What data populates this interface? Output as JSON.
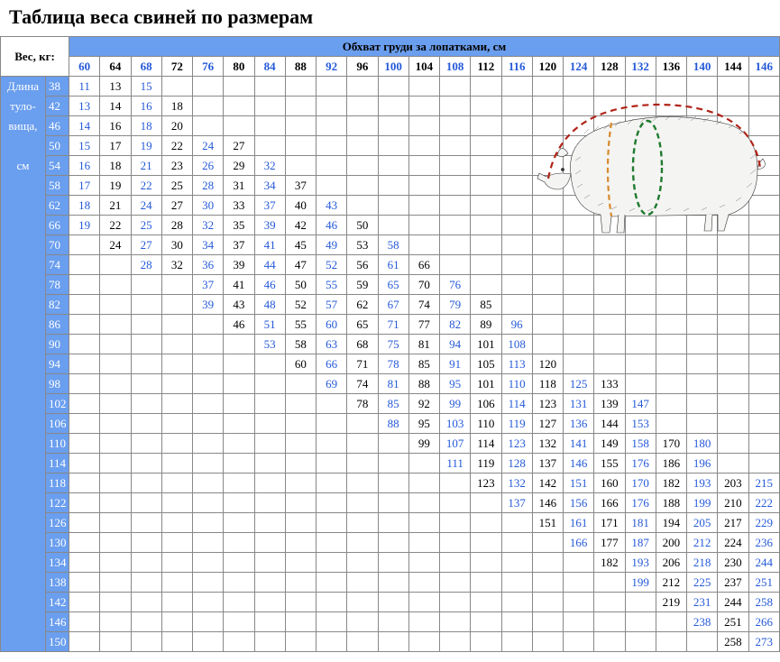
{
  "title": "Таблица веса свиней по размерам",
  "colors": {
    "header_bg": "#6a9eee",
    "blue_text": "#2459d8",
    "black_text": "#000000",
    "border": "#888888",
    "side_text": "#ffffff"
  },
  "fonts": {
    "title_size": 22,
    "cell_size": 13
  },
  "corner_label": "Вес, кг:",
  "top_header": "Обхват груди за лопатками, см",
  "side_labels": [
    "Длина",
    "туло-",
    "вища,",
    "см"
  ],
  "columns": [
    "60",
    "64",
    "68",
    "72",
    "76",
    "80",
    "84",
    "88",
    "92",
    "96",
    "100",
    "104",
    "108",
    "112",
    "116",
    "120",
    "124",
    "128",
    "132",
    "136",
    "140",
    "144",
    "146"
  ],
  "row_labels": [
    "38",
    "42",
    "46",
    "50",
    "54",
    "58",
    "62",
    "66",
    "70",
    "74",
    "78",
    "82",
    "86",
    "90",
    "94",
    "98",
    "102",
    "106",
    "110",
    "114",
    "118",
    "122",
    "126",
    "130",
    "134",
    "138",
    "142",
    "146",
    "150"
  ],
  "grid": [
    [
      "11",
      "13",
      "15",
      "",
      "",
      "",
      "",
      "",
      "",
      "",
      "",
      "",
      "",
      "",
      "",
      "",
      "",
      "",
      "",
      "",
      "",
      "",
      ""
    ],
    [
      "13",
      "14",
      "16",
      "18",
      "",
      "",
      "",
      "",
      "",
      "",
      "",
      "",
      "",
      "",
      "",
      "",
      "",
      "",
      "",
      "",
      "",
      "",
      ""
    ],
    [
      "14",
      "16",
      "18",
      "20",
      "",
      "",
      "",
      "",
      "",
      "",
      "",
      "",
      "",
      "",
      "",
      "",
      "",
      "",
      "",
      "",
      "",
      "",
      ""
    ],
    [
      "15",
      "17",
      "19",
      "22",
      "24",
      "27",
      "",
      "",
      "",
      "",
      "",
      "",
      "",
      "",
      "",
      "",
      "",
      "",
      "",
      "",
      "",
      "",
      ""
    ],
    [
      "16",
      "18",
      "21",
      "23",
      "26",
      "29",
      "32",
      "",
      "",
      "",
      "",
      "",
      "",
      "",
      "",
      "",
      "",
      "",
      "",
      "",
      "",
      "",
      ""
    ],
    [
      "17",
      "19",
      "22",
      "25",
      "28",
      "31",
      "34",
      "37",
      "",
      "",
      "",
      "",
      "",
      "",
      "",
      "",
      "",
      "",
      "",
      "",
      "",
      "",
      ""
    ],
    [
      "18",
      "21",
      "24",
      "27",
      "30",
      "33",
      "37",
      "40",
      "43",
      "",
      "",
      "",
      "",
      "",
      "",
      "",
      "",
      "",
      "",
      "",
      "",
      "",
      ""
    ],
    [
      "19",
      "22",
      "25",
      "28",
      "32",
      "35",
      "39",
      "42",
      "46",
      "50",
      "",
      "",
      "",
      "",
      "",
      "",
      "",
      "",
      "",
      "",
      "",
      "",
      ""
    ],
    [
      "",
      "24",
      "27",
      "30",
      "34",
      "37",
      "41",
      "45",
      "49",
      "53",
      "58",
      "",
      "",
      "",
      "",
      "",
      "",
      "",
      "",
      "",
      "",
      "",
      ""
    ],
    [
      "",
      "",
      "28",
      "32",
      "36",
      "39",
      "44",
      "47",
      "52",
      "56",
      "61",
      "66",
      "",
      "",
      "",
      "",
      "",
      "",
      "",
      "",
      "",
      "",
      ""
    ],
    [
      "",
      "",
      "",
      "",
      "37",
      "41",
      "46",
      "50",
      "55",
      "59",
      "65",
      "70",
      "76",
      "",
      "",
      "",
      "",
      "",
      "",
      "",
      "",
      "",
      ""
    ],
    [
      "",
      "",
      "",
      "",
      "39",
      "43",
      "48",
      "52",
      "57",
      "62",
      "67",
      "74",
      "79",
      "85",
      "",
      "",
      "",
      "",
      "",
      "",
      "",
      "",
      ""
    ],
    [
      "",
      "",
      "",
      "",
      "",
      "46",
      "51",
      "55",
      "60",
      "65",
      "71",
      "77",
      "82",
      "89",
      "96",
      "",
      "",
      "",
      "",
      "",
      "",
      "",
      ""
    ],
    [
      "",
      "",
      "",
      "",
      "",
      "",
      "53",
      "58",
      "63",
      "68",
      "75",
      "81",
      "94",
      "101",
      "108",
      "",
      "",
      "",
      "",
      "",
      "",
      "",
      ""
    ],
    [
      "",
      "",
      "",
      "",
      "",
      "",
      "",
      "60",
      "66",
      "71",
      "78",
      "85",
      "91",
      "105",
      "113",
      "120",
      "",
      "",
      "",
      "",
      "",
      "",
      ""
    ],
    [
      "",
      "",
      "",
      "",
      "",
      "",
      "",
      "",
      "69",
      "74",
      "81",
      "88",
      "95",
      "101",
      "110",
      "118",
      "125",
      "133",
      "",
      "",
      "",
      "",
      ""
    ],
    [
      "",
      "",
      "",
      "",
      "",
      "",
      "",
      "",
      "",
      "78",
      "85",
      "92",
      "99",
      "106",
      "114",
      "123",
      "131",
      "139",
      "147",
      "",
      "",
      "",
      ""
    ],
    [
      "",
      "",
      "",
      "",
      "",
      "",
      "",
      "",
      "",
      "",
      "88",
      "95",
      "103",
      "110",
      "119",
      "127",
      "136",
      "144",
      "153",
      "",
      "",
      "",
      ""
    ],
    [
      "",
      "",
      "",
      "",
      "",
      "",
      "",
      "",
      "",
      "",
      "",
      "99",
      "107",
      "114",
      "123",
      "132",
      "141",
      "149",
      "158",
      "170",
      "180",
      "",
      ""
    ],
    [
      "",
      "",
      "",
      "",
      "",
      "",
      "",
      "",
      "",
      "",
      "",
      "",
      "111",
      "119",
      "128",
      "137",
      "146",
      "155",
      "176",
      "186",
      "196",
      "",
      ""
    ],
    [
      "",
      "",
      "",
      "",
      "",
      "",
      "",
      "",
      "",
      "",
      "",
      "",
      "",
      "123",
      "132",
      "142",
      "151",
      "160",
      "170",
      "182",
      "193",
      "203",
      "215"
    ],
    [
      "",
      "",
      "",
      "",
      "",
      "",
      "",
      "",
      "",
      "",
      "",
      "",
      "",
      "",
      "137",
      "146",
      "156",
      "166",
      "176",
      "188",
      "199",
      "210",
      "222"
    ],
    [
      "",
      "",
      "",
      "",
      "",
      "",
      "",
      "",
      "",
      "",
      "",
      "",
      "",
      "",
      "",
      "151",
      "161",
      "171",
      "181",
      "194",
      "205",
      "217",
      "229"
    ],
    [
      "",
      "",
      "",
      "",
      "",
      "",
      "",
      "",
      "",
      "",
      "",
      "",
      "",
      "",
      "",
      "",
      "166",
      "177",
      "187",
      "200",
      "212",
      "224",
      "236"
    ],
    [
      "",
      "",
      "",
      "",
      "",
      "",
      "",
      "",
      "",
      "",
      "",
      "",
      "",
      "",
      "",
      "",
      "",
      "182",
      "193",
      "206",
      "218",
      "230",
      "244"
    ],
    [
      "",
      "",
      "",
      "",
      "",
      "",
      "",
      "",
      "",
      "",
      "",
      "",
      "",
      "",
      "",
      "",
      "",
      "",
      "199",
      "212",
      "225",
      "237",
      "251"
    ],
    [
      "",
      "",
      "",
      "",
      "",
      "",
      "",
      "",
      "",
      "",
      "",
      "",
      "",
      "",
      "",
      "",
      "",
      "",
      "",
      "219",
      "231",
      "244",
      "258"
    ],
    [
      "",
      "",
      "",
      "",
      "",
      "",
      "",
      "",
      "",
      "",
      "",
      "",
      "",
      "",
      "",
      "",
      "",
      "",
      "",
      "",
      "238",
      "251",
      "266"
    ],
    [
      "",
      "",
      "",
      "",
      "",
      "",
      "",
      "",
      "",
      "",
      "",
      "",
      "",
      "",
      "",
      "",
      "",
      "",
      "",
      "",
      "",
      "258",
      "273"
    ]
  ]
}
